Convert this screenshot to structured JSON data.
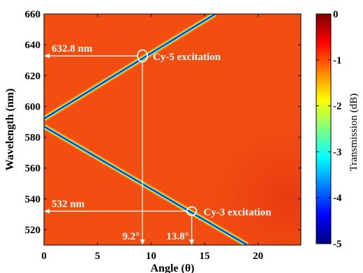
{
  "chart_data": {
    "type": "heatmap",
    "xlabel": "Angle (θ)",
    "ylabel": "Wavelength (nm)",
    "xlim": [
      0,
      24
    ],
    "ylim": [
      510,
      660
    ],
    "x_ticks": [
      0,
      5,
      10,
      15,
      20
    ],
    "y_ticks": [
      520,
      540,
      560,
      580,
      600,
      620,
      640,
      660
    ],
    "x_tick_labels": [
      "0",
      "5",
      "10",
      "15",
      "20"
    ],
    "y_tick_labels": [
      "520",
      "540",
      "560",
      "580",
      "600",
      "620",
      "640",
      "660"
    ],
    "colorbar": {
      "label": "Transmission (dB)",
      "range": [
        -5,
        0
      ],
      "ticks": [
        0,
        -1,
        -2,
        -3,
        -4,
        -5
      ],
      "tick_labels": [
        "0",
        "-1",
        "-2",
        "-3",
        "-4",
        "-5"
      ],
      "colormap": "jet"
    },
    "background_level_db": -0.5,
    "resonances": [
      {
        "name": "upper",
        "x": [
          0,
          16
        ],
        "y": [
          592,
          660
        ],
        "min_db": -5
      },
      {
        "name": "lower",
        "x": [
          0,
          19
        ],
        "y": [
          587,
          510
        ],
        "min_db": -5
      }
    ],
    "annotations": [
      {
        "text": "632.8 nm",
        "wavelength": 632.8
      },
      {
        "text": "Cy-5 excitation",
        "angle": 9.2,
        "wavelength": 632.8
      },
      {
        "text": "532 nm",
        "wavelength": 532
      },
      {
        "text": "Cy-3 excitation",
        "angle": 13.8,
        "wavelength": 532
      },
      {
        "text": "9.2°",
        "angle": 9.2
      },
      {
        "text": "13.8°",
        "angle": 13.8
      }
    ]
  }
}
